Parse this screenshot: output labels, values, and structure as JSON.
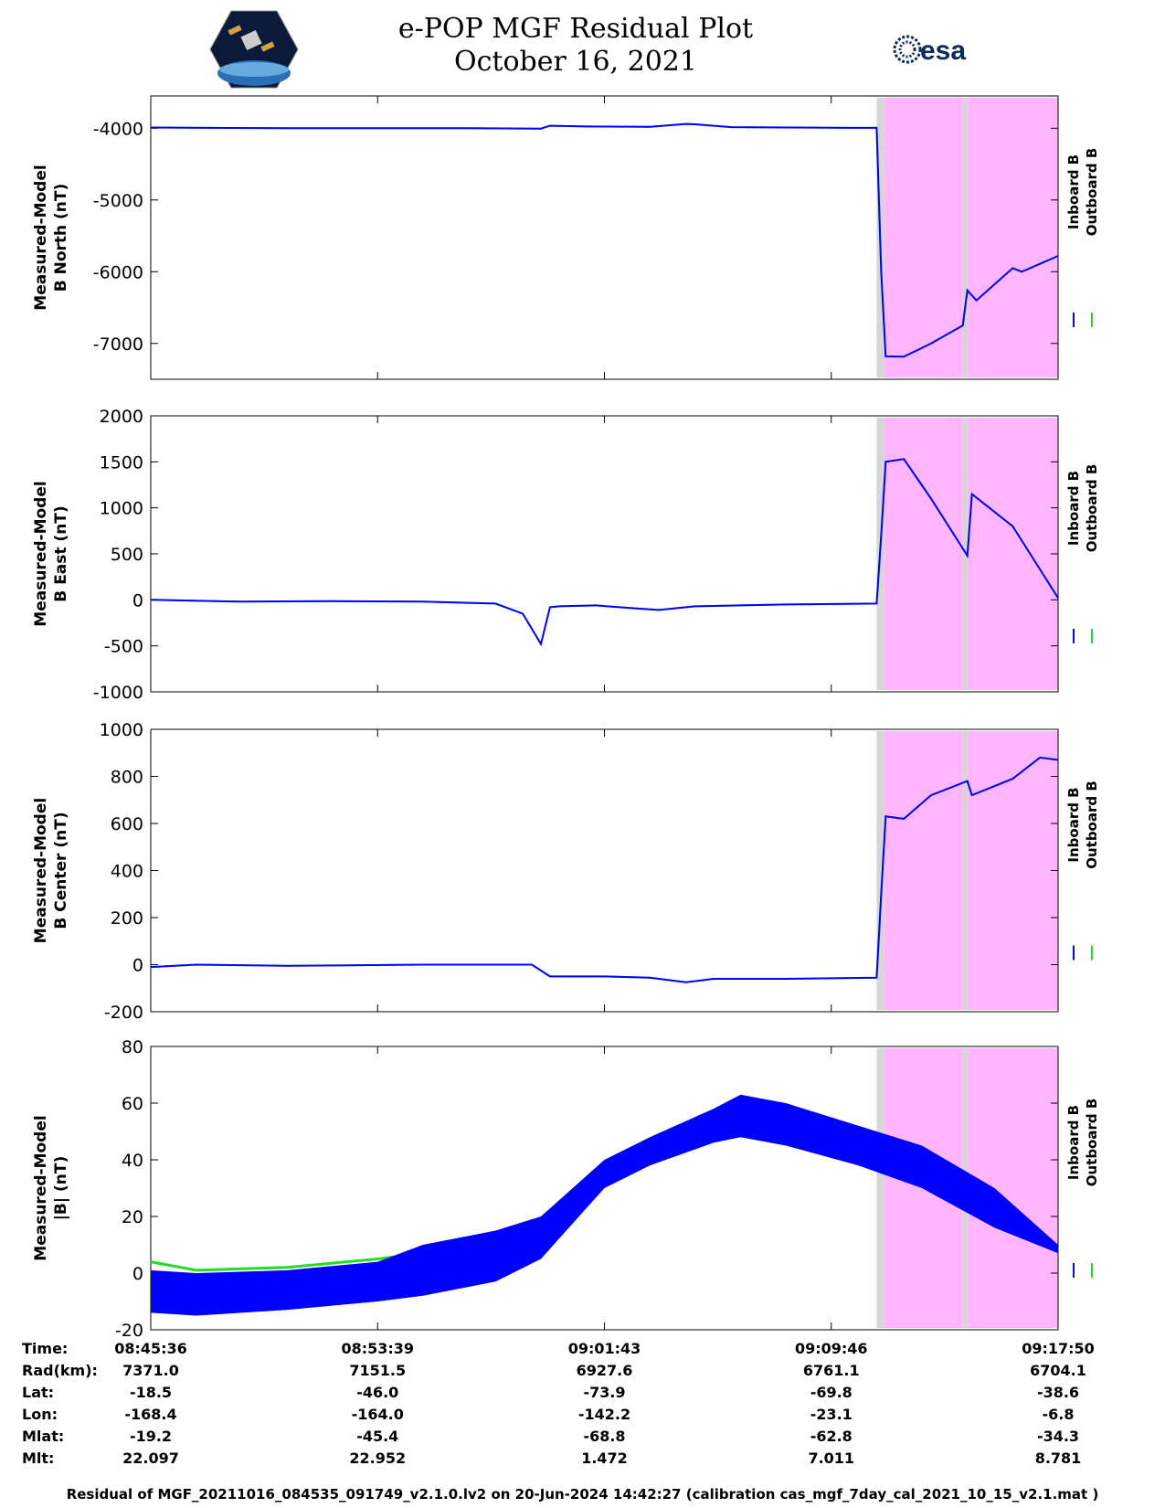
{
  "header": {
    "title": "e-POP MGF Residual Plot",
    "date": "October 16, 2021",
    "left_logo": "CASSIOPE",
    "right_logo": "esa"
  },
  "colors": {
    "inboard": "#0000ff",
    "outboard": "#22dd22",
    "shade_pink": "#ffb6ff",
    "shade_gray": "#d6d6d6"
  },
  "legend": {
    "inboard": "Inboard B",
    "outboard": "Outboard B"
  },
  "chart_data": [
    {
      "type": "line",
      "ylabel": [
        "Measured-Model",
        "B North (nT)"
      ],
      "ylim": [
        -7500,
        -3550
      ],
      "yticks": [
        -7000,
        -6000,
        -5000,
        -4000
      ],
      "series": [
        {
          "name": "Inboard B",
          "x": [
            0,
            0.06,
            0.15,
            0.25,
            0.3,
            0.35,
            0.43,
            0.44,
            0.48,
            0.55,
            0.59,
            0.6,
            0.64,
            0.7,
            0.77,
            0.8,
            0.805,
            0.81,
            0.83,
            0.86,
            0.895,
            0.9,
            0.91,
            0.95,
            0.96,
            1.0
          ],
          "values": [
            -3990,
            -3995,
            -4000,
            -3998,
            -4000,
            -3998,
            -4005,
            -3965,
            -3975,
            -3980,
            -3940,
            -3945,
            -3985,
            -3990,
            -3995,
            -3995,
            -6000,
            -7180,
            -7185,
            -7000,
            -6750,
            -6260,
            -6400,
            -5950,
            -6000,
            -5780
          ]
        }
      ]
    },
    {
      "type": "line",
      "ylabel": [
        "Measured-Model",
        "B East (nT)"
      ],
      "ylim": [
        -1000,
        2000
      ],
      "yticks": [
        -1000,
        -500,
        0,
        500,
        1000,
        1500,
        2000
      ],
      "series": [
        {
          "name": "Inboard B",
          "x": [
            0,
            0.1,
            0.2,
            0.3,
            0.38,
            0.41,
            0.43,
            0.44,
            0.45,
            0.49,
            0.53,
            0.56,
            0.6,
            0.7,
            0.8,
            0.805,
            0.81,
            0.83,
            0.86,
            0.9,
            0.905,
            0.95,
            1.0
          ],
          "values": [
            0,
            -20,
            -15,
            -20,
            -40,
            -150,
            -480,
            -80,
            -70,
            -60,
            -90,
            -110,
            -70,
            -50,
            -40,
            700,
            1500,
            1530,
            1100,
            480,
            1150,
            800,
            20
          ]
        }
      ]
    },
    {
      "type": "line",
      "ylabel": [
        "Measured-Model",
        "B Center (nT)"
      ],
      "ylim": [
        -200,
        1000
      ],
      "yticks": [
        -200,
        0,
        200,
        400,
        600,
        800,
        1000
      ],
      "series": [
        {
          "name": "Inboard B",
          "x": [
            0,
            0.05,
            0.15,
            0.3,
            0.42,
            0.44,
            0.5,
            0.55,
            0.59,
            0.62,
            0.7,
            0.8,
            0.805,
            0.81,
            0.83,
            0.86,
            0.9,
            0.905,
            0.95,
            0.98,
            1.0
          ],
          "values": [
            -10,
            0,
            -5,
            0,
            0,
            -50,
            -50,
            -55,
            -75,
            -60,
            -60,
            -55,
            300,
            630,
            620,
            720,
            780,
            720,
            790,
            880,
            870
          ]
        }
      ]
    },
    {
      "type": "area",
      "ylabel": [
        "Measured-Model",
        "|B| (nT)"
      ],
      "ylim": [
        -20,
        80
      ],
      "yticks": [
        -20,
        0,
        20,
        40,
        60,
        80
      ],
      "series": [
        {
          "name": "Inboard B (upper)",
          "x": [
            0,
            0.05,
            0.15,
            0.25,
            0.3,
            0.38,
            0.43,
            0.5,
            0.55,
            0.62,
            0.65,
            0.7,
            0.78,
            0.85,
            0.93,
            1.0
          ],
          "values": [
            1,
            0,
            1,
            4,
            10,
            15,
            20,
            40,
            48,
            58,
            63,
            60,
            52,
            45,
            30,
            10
          ]
        },
        {
          "name": "Inboard B (lower)",
          "x": [
            0,
            0.05,
            0.15,
            0.25,
            0.3,
            0.38,
            0.43,
            0.5,
            0.55,
            0.62,
            0.65,
            0.7,
            0.78,
            0.85,
            0.93,
            1.0
          ],
          "values": [
            -14,
            -15,
            -13,
            -10,
            -8,
            -3,
            5,
            30,
            38,
            46,
            48,
            45,
            38,
            30,
            16,
            7
          ]
        },
        {
          "name": "Outboard B",
          "x": [
            0,
            0.05,
            0.15,
            0.25,
            0.3,
            0.38,
            0.43,
            0.5,
            0.55,
            0.62,
            0.65,
            0.7,
            0.78,
            0.85,
            0.93,
            1.0
          ],
          "values": [
            4,
            1,
            2,
            5,
            7,
            12,
            18,
            34,
            40,
            47,
            49,
            46,
            39,
            31,
            17,
            8
          ]
        }
      ]
    }
  ],
  "shaded_regions": {
    "gray_bands": [
      [
        0.8,
        0.808
      ],
      [
        0.895,
        0.9
      ]
    ],
    "pink_regions": [
      [
        0.808,
        0.895
      ],
      [
        0.9,
        1.0
      ]
    ]
  },
  "xticks": [
    0,
    0.25,
    0.5,
    0.75,
    1.0
  ],
  "info_rows": [
    {
      "label": "Time:",
      "values": [
        "08:45:36",
        "08:53:39",
        "09:01:43",
        "09:09:46",
        "09:17:50"
      ]
    },
    {
      "label": "Rad(km):",
      "values": [
        "7371.0",
        "7151.5",
        "6927.6",
        "6761.1",
        "6704.1"
      ]
    },
    {
      "label": "Lat:",
      "values": [
        "-18.5",
        "-46.0",
        "-73.9",
        "-69.8",
        "-38.6"
      ]
    },
    {
      "label": "Lon:",
      "values": [
        "-168.4",
        "-164.0",
        "-142.2",
        "-23.1",
        "-6.8"
      ]
    },
    {
      "label": "Mlat:",
      "values": [
        "-19.2",
        "-45.4",
        "-68.8",
        "-62.8",
        "-34.3"
      ]
    },
    {
      "label": "Mlt:",
      "values": [
        "22.097",
        "22.952",
        "1.472",
        "7.011",
        "8.781"
      ]
    }
  ],
  "footer": "Residual of MGF_20211016_084535_091749_v2.1.0.lv2 on 20-Jun-2024 14:42:27 (calibration cas_mgf_7day_cal_2021_10_15_v2.1.mat )"
}
